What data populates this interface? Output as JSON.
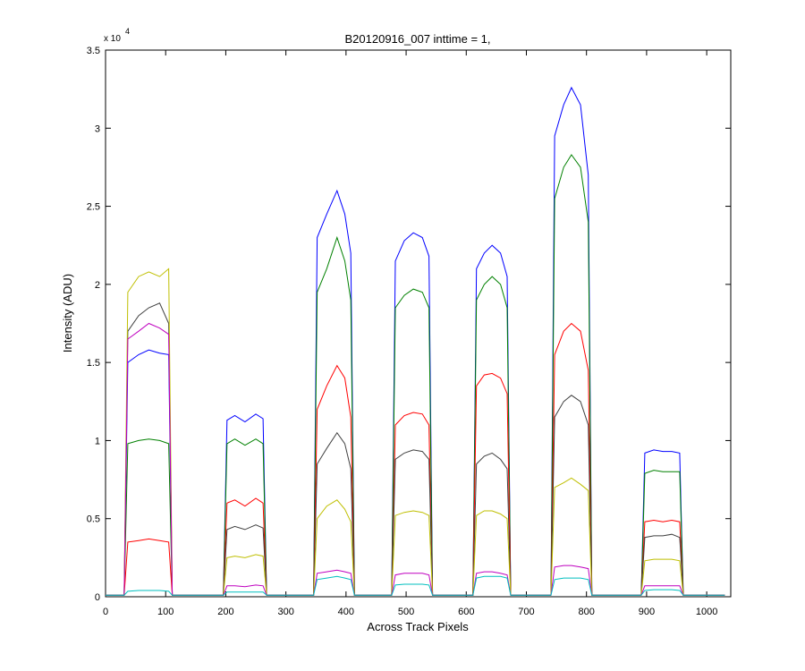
{
  "chart_data": {
    "type": "line",
    "title": "B20120916_007 inttime = 1,",
    "x_label": "Across Track Pixels",
    "y_label": "Intensity (ADU)",
    "y_multiplier": "x 10",
    "y_multiplier_exponent": "4",
    "xlim": [
      0,
      1040
    ],
    "ylim": [
      0,
      35000
    ],
    "xticks": [
      0,
      100,
      200,
      300,
      400,
      500,
      600,
      700,
      800,
      900,
      1000
    ],
    "yticks": [
      0,
      {
        "value": 5000,
        "label": "0.5"
      },
      {
        "value": 10000,
        "label": "1"
      },
      {
        "value": 15000,
        "label": "1.5"
      },
      {
        "value": 20000,
        "label": "2"
      },
      {
        "value": 25000,
        "label": "2.5"
      },
      {
        "value": 30000,
        "label": "3"
      },
      {
        "value": 35000,
        "label": "3.5"
      }
    ],
    "x": [
      0,
      31,
      37,
      55,
      72,
      90,
      105,
      111,
      196,
      202,
      215,
      232,
      250,
      262,
      268,
      346,
      352,
      368,
      385,
      398,
      408,
      414,
      476,
      482,
      497,
      512,
      527,
      538,
      544,
      611,
      617,
      630,
      643,
      657,
      668,
      674,
      741,
      747,
      762,
      775,
      790,
      803,
      809,
      891,
      897,
      912,
      927,
      942,
      955,
      961,
      1030
    ],
    "series": [
      {
        "color": "#0000ff",
        "values": [
          100,
          100,
          15000,
          15500,
          15800,
          15600,
          15500,
          100,
          100,
          11300,
          11600,
          11200,
          11700,
          11400,
          100,
          100,
          23000,
          24500,
          26000,
          24500,
          22000,
          100,
          100,
          21500,
          22800,
          23300,
          23000,
          21800,
          100,
          100,
          21000,
          22000,
          22500,
          22000,
          20500,
          100,
          100,
          29500,
          31500,
          32600,
          31500,
          27000,
          100,
          100,
          9200,
          9400,
          9300,
          9300,
          9200,
          100,
          100
        ]
      },
      {
        "color": "#008000",
        "values": [
          100,
          100,
          9800,
          10000,
          10100,
          10000,
          9800,
          100,
          100,
          9800,
          10100,
          9700,
          10100,
          9800,
          100,
          100,
          19500,
          21000,
          23000,
          21500,
          19000,
          100,
          100,
          18500,
          19300,
          19700,
          19500,
          18500,
          100,
          100,
          19000,
          20000,
          20500,
          20000,
          18500,
          100,
          100,
          25500,
          27500,
          28300,
          27500,
          24000,
          100,
          100,
          7900,
          8100,
          8000,
          8000,
          8000,
          100,
          100
        ]
      },
      {
        "color": "#ff0000",
        "values": [
          100,
          100,
          3500,
          3600,
          3700,
          3600,
          3500,
          100,
          100,
          6000,
          6200,
          5800,
          6300,
          6000,
          100,
          100,
          12000,
          13500,
          14800,
          14000,
          11500,
          100,
          100,
          11000,
          11600,
          11800,
          11700,
          11000,
          100,
          100,
          13500,
          14200,
          14300,
          14000,
          13000,
          100,
          100,
          15500,
          17000,
          17500,
          17000,
          14500,
          100,
          100,
          4800,
          4900,
          4800,
          4900,
          4800,
          100,
          100
        ]
      },
      {
        "color": "#404040",
        "values": [
          100,
          100,
          17000,
          18000,
          18500,
          18800,
          17500,
          100,
          100,
          4300,
          4500,
          4300,
          4600,
          4400,
          100,
          100,
          8500,
          9500,
          10500,
          9800,
          8200,
          100,
          100,
          8800,
          9200,
          9400,
          9300,
          8800,
          100,
          100,
          8500,
          9000,
          9200,
          8800,
          8200,
          100,
          100,
          11500,
          12500,
          12900,
          12500,
          11000,
          100,
          100,
          3800,
          3900,
          3900,
          4000,
          3800,
          100,
          100
        ]
      },
      {
        "color": "#bfbf00",
        "values": [
          100,
          100,
          19500,
          20500,
          20800,
          20500,
          21000,
          100,
          100,
          2500,
          2600,
          2500,
          2700,
          2600,
          100,
          100,
          5000,
          5800,
          6200,
          5600,
          4800,
          100,
          100,
          5200,
          5400,
          5500,
          5400,
          5200,
          100,
          100,
          5200,
          5500,
          5500,
          5300,
          5000,
          100,
          100,
          7000,
          7300,
          7600,
          7200,
          6800,
          100,
          100,
          2300,
          2400,
          2400,
          2400,
          2300,
          100,
          100
        ]
      },
      {
        "color": "#bf00bf",
        "values": [
          100,
          100,
          16500,
          17000,
          17500,
          17200,
          16800,
          100,
          100,
          700,
          700,
          650,
          750,
          700,
          100,
          100,
          1500,
          1600,
          1700,
          1600,
          1500,
          100,
          100,
          1400,
          1500,
          1500,
          1500,
          1400,
          100,
          100,
          1500,
          1600,
          1600,
          1500,
          1400,
          100,
          100,
          1900,
          2000,
          2000,
          1900,
          1800,
          100,
          100,
          700,
          700,
          700,
          700,
          700,
          100,
          100
        ]
      },
      {
        "color": "#00bfbf",
        "values": [
          100,
          100,
          350,
          400,
          400,
          400,
          350,
          100,
          100,
          300,
          300,
          300,
          300,
          300,
          100,
          100,
          1100,
          1200,
          1300,
          1200,
          1100,
          100,
          100,
          750,
          800,
          800,
          800,
          750,
          100,
          100,
          1200,
          1300,
          1300,
          1300,
          1200,
          100,
          100,
          1100,
          1200,
          1200,
          1200,
          1100,
          100,
          100,
          400,
          450,
          450,
          450,
          400,
          100,
          100
        ]
      }
    ]
  }
}
